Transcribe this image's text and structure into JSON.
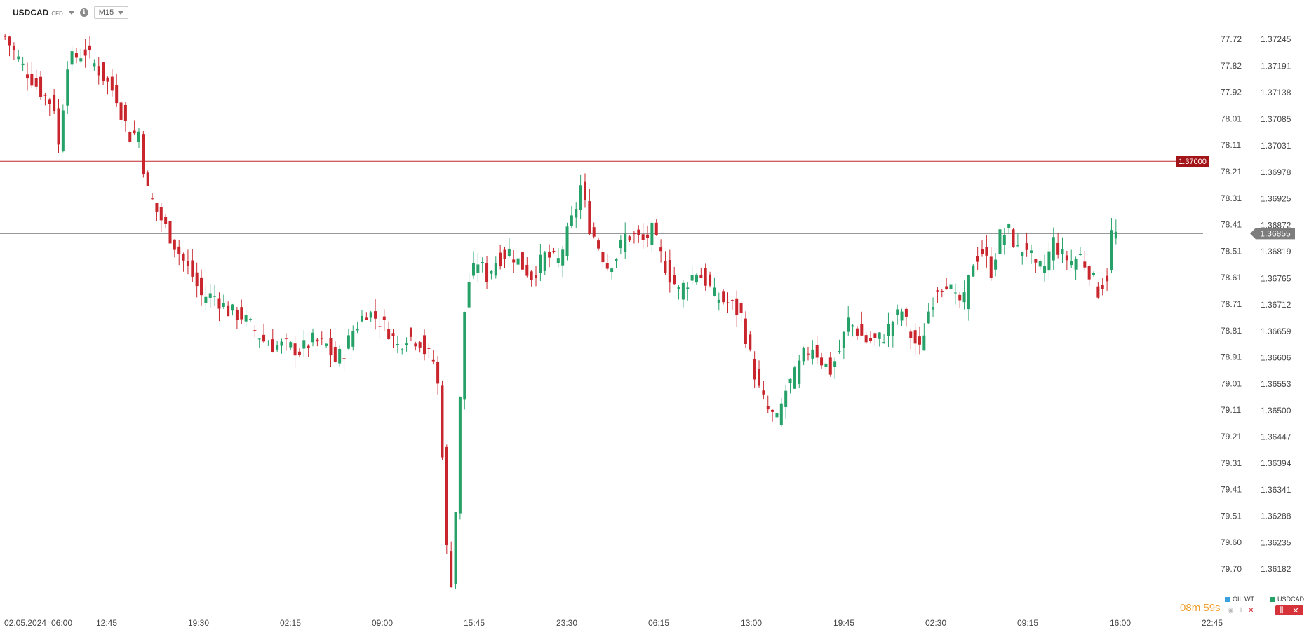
{
  "header": {
    "symbol": "USDCAD",
    "instrument_type": "CFD",
    "timeframe": "M15"
  },
  "chart_data": {
    "type": "candlestick",
    "y_axis_right": {
      "label": "USDCAD",
      "ticks": [
        "1.37245",
        "1.37191",
        "1.37138",
        "1.37085",
        "1.37031",
        "1.36978",
        "1.36925",
        "1.36872",
        "1.36819",
        "1.36765",
        "1.36712",
        "1.36659",
        "1.36606",
        "1.36553",
        "1.36500",
        "1.36447",
        "1.36394",
        "1.36341",
        "1.36288",
        "1.36235",
        "1.36182"
      ],
      "range": [
        1.3613,
        1.373
      ]
    },
    "y_axis_inner": {
      "label": "OIL.WTI",
      "ticks": [
        "77.72",
        "77.82",
        "77.92",
        "78.01",
        "78.11",
        "78.21",
        "78.31",
        "78.41",
        "78.51",
        "78.61",
        "78.71",
        "78.81",
        "78.91",
        "79.01",
        "79.11",
        "79.21",
        "79.31",
        "79.41",
        "79.51",
        "79.60",
        "79.70"
      ]
    },
    "x_axis_ticks": [
      "02.05.2024",
      "06:00",
      "12:45",
      "19:30",
      "02:15",
      "09:00",
      "15:45",
      "23:30",
      "06:15",
      "13:00",
      "19:45",
      "02:30",
      "09:15",
      "16:00",
      "22:45"
    ],
    "series": [
      {
        "name": "USDCAD",
        "points": [
          [
            0,
            1.3725
          ],
          [
            4,
            1.3719
          ],
          [
            8,
            1.3714
          ],
          [
            11,
            1.3711
          ],
          [
            12,
            1.3703
          ],
          [
            14,
            1.372
          ],
          [
            18,
            1.3722
          ],
          [
            22,
            1.3717
          ],
          [
            25,
            1.3713
          ],
          [
            26,
            1.371
          ],
          [
            28,
            1.3705
          ],
          [
            30,
            1.3706
          ],
          [
            31,
            1.3699
          ],
          [
            32,
            1.3694
          ],
          [
            34,
            1.369
          ],
          [
            37,
            1.3685
          ],
          [
            40,
            1.368
          ],
          [
            42,
            1.3677
          ],
          [
            44,
            1.3673
          ],
          [
            47,
            1.3673
          ],
          [
            50,
            1.367
          ],
          [
            53,
            1.3669
          ],
          [
            56,
            1.3666
          ],
          [
            58,
            1.3664
          ],
          [
            60,
            1.3663
          ],
          [
            63,
            1.3663
          ],
          [
            66,
            1.3662
          ],
          [
            69,
            1.3664
          ],
          [
            72,
            1.3663
          ],
          [
            74,
            1.366
          ],
          [
            76,
            1.3662
          ],
          [
            78,
            1.3666
          ],
          [
            81,
            1.367
          ],
          [
            84,
            1.3668
          ],
          [
            86,
            1.3666
          ],
          [
            88,
            1.3663
          ],
          [
            90,
            1.3665
          ],
          [
            93,
            1.3664
          ],
          [
            94,
            1.3662
          ],
          [
            96,
            1.366
          ],
          [
            97,
            1.3655
          ],
          [
            98,
            1.3642
          ],
          [
            99,
            1.3622
          ],
          [
            100,
            1.3616
          ],
          [
            101,
            1.363
          ],
          [
            102,
            1.3652
          ],
          [
            103,
            1.367
          ],
          [
            104,
            1.3676
          ],
          [
            106,
            1.368
          ],
          [
            108,
            1.3677
          ],
          [
            110,
            1.368
          ],
          [
            113,
            1.3682
          ],
          [
            116,
            1.3679
          ],
          [
            118,
            1.3677
          ],
          [
            121,
            1.3681
          ],
          [
            124,
            1.368
          ],
          [
            127,
            1.3688
          ],
          [
            128,
            1.3691
          ],
          [
            129,
            1.3695
          ],
          [
            131,
            1.3687
          ],
          [
            133,
            1.3683
          ],
          [
            135,
            1.3679
          ],
          [
            137,
            1.3681
          ],
          [
            139,
            1.3685
          ],
          [
            141,
            1.3685
          ],
          [
            143,
            1.3684
          ],
          [
            145,
            1.3686
          ],
          [
            147,
            1.3681
          ],
          [
            149,
            1.3677
          ],
          [
            151,
            1.3674
          ],
          [
            153,
            1.3676
          ],
          [
            155,
            1.3678
          ],
          [
            157,
            1.3676
          ],
          [
            159,
            1.3673
          ],
          [
            161,
            1.3672
          ],
          [
            163,
            1.3671
          ],
          [
            165,
            1.3669
          ],
          [
            167,
            1.3661
          ],
          [
            169,
            1.3654
          ],
          [
            171,
            1.365
          ],
          [
            173,
            1.3648
          ],
          [
            175,
            1.3654
          ],
          [
            177,
            1.3657
          ],
          [
            179,
            1.3661
          ],
          [
            181,
            1.3663
          ],
          [
            183,
            1.366
          ],
          [
            185,
            1.3658
          ],
          [
            187,
            1.3662
          ],
          [
            189,
            1.3668
          ],
          [
            191,
            1.3666
          ],
          [
            193,
            1.3664
          ],
          [
            195,
            1.3664
          ],
          [
            197,
            1.3665
          ],
          [
            199,
            1.3668
          ],
          [
            201,
            1.367
          ],
          [
            203,
            1.3665
          ],
          [
            205,
            1.3662
          ],
          [
            207,
            1.367
          ],
          [
            209,
            1.3675
          ],
          [
            211,
            1.3676
          ],
          [
            213,
            1.3672
          ],
          [
            215,
            1.3672
          ],
          [
            217,
            1.368
          ],
          [
            219,
            1.3682
          ],
          [
            221,
            1.3678
          ],
          [
            223,
            1.3685
          ],
          [
            225,
            1.3686
          ],
          [
            227,
            1.3682
          ],
          [
            229,
            1.3683
          ],
          [
            231,
            1.3678
          ],
          [
            233,
            1.3679
          ],
          [
            235,
            1.3684
          ],
          [
            237,
            1.3681
          ],
          [
            239,
            1.368
          ],
          [
            241,
            1.3681
          ],
          [
            243,
            1.3678
          ],
          [
            245,
            1.3674
          ],
          [
            247,
            1.3677
          ],
          [
            248,
            1.36855
          ]
        ]
      }
    ],
    "horizontal_lines": [
      {
        "label": "1.37000",
        "value": 1.37,
        "color": "#c0272d"
      },
      {
        "label": "1.36855",
        "value": 1.36855,
        "color": "#8a8a8a"
      }
    ],
    "colors": {
      "up": "#26a269",
      "down": "#c8252c"
    }
  },
  "footer": {
    "timer_minutes": "08",
    "timer_m": "m",
    "timer_seconds": "59",
    "timer_s": "s",
    "legend_oil": "OIL.WT..",
    "legend_usdcad": "USDCAD",
    "legend_oil_color": "#3aa0e0",
    "legend_usdcad_color": "#26a269"
  }
}
